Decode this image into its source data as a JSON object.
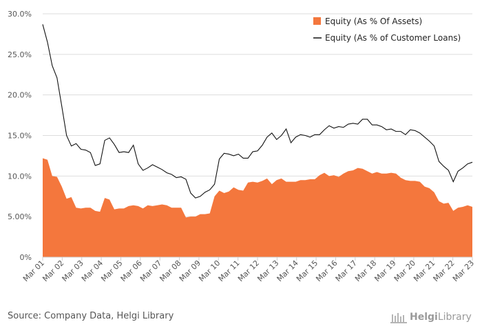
{
  "source": "Source: Company Data, Helgi Library",
  "logo": {
    "part1": "Helgi",
    "part2": "Library"
  },
  "colors": {
    "assets_fill": "#f4773d",
    "loans_line": "#111111",
    "grid": "#dddddd",
    "axis": "#cfcfcf",
    "text": "#555555"
  },
  "chart_data": {
    "type": "area",
    "y_ticks": [
      "0%",
      "5.00%",
      "10.0%",
      "15.0%",
      "20.0%",
      "25.0%",
      "30.0%"
    ],
    "ylim": [
      0,
      30
    ],
    "x_ticks": [
      "Mar 01",
      "Mar 02",
      "Mar 03",
      "Mar 04",
      "Mar 05",
      "Mar 06",
      "Mar 07",
      "Mar 08",
      "Mar 09",
      "Mar 10",
      "Mar 11",
      "Mar 12",
      "Mar 13",
      "Mar 14",
      "Mar 15",
      "Mar 16",
      "Mar 17",
      "Mar 18",
      "Mar 19",
      "Mar 20",
      "Mar 21",
      "Mar 22",
      "Mar 23"
    ],
    "x_range": [
      0,
      90
    ],
    "legend_position": "top-right",
    "series": [
      {
        "name": "Equity (As % Of Assets)",
        "type": "area",
        "x": [
          0,
          1,
          2,
          3,
          4,
          5,
          6,
          7,
          8,
          9,
          10,
          11,
          12,
          13,
          14,
          15,
          16,
          17,
          18,
          19,
          20,
          21,
          22,
          23,
          24,
          25,
          26,
          27,
          28,
          29,
          30,
          31,
          32,
          33,
          34,
          35,
          36,
          37,
          38,
          39,
          40,
          41,
          42,
          43,
          44,
          45,
          46,
          47,
          48,
          49,
          50,
          51,
          52,
          53,
          54,
          55,
          56,
          57,
          58,
          59,
          60,
          61,
          62,
          63,
          64,
          65,
          66,
          67,
          68,
          69,
          70,
          71,
          72,
          73,
          74,
          75,
          76,
          77,
          78,
          79,
          80,
          81,
          82,
          83,
          84,
          85,
          86,
          87,
          88,
          89,
          90
        ],
        "values": [
          12.2,
          12.0,
          10.0,
          9.9,
          8.7,
          7.2,
          7.4,
          6.1,
          6.0,
          6.1,
          6.1,
          5.7,
          5.6,
          7.3,
          7.1,
          5.9,
          6.0,
          6.0,
          6.3,
          6.4,
          6.3,
          6.0,
          6.4,
          6.3,
          6.4,
          6.5,
          6.4,
          6.1,
          6.1,
          6.1,
          4.9,
          5.0,
          5.0,
          5.3,
          5.3,
          5.4,
          7.5,
          8.2,
          7.9,
          8.1,
          8.6,
          8.3,
          8.2,
          9.2,
          9.3,
          9.2,
          9.4,
          9.7,
          9.0,
          9.5,
          9.7,
          9.3,
          9.3,
          9.3,
          9.5,
          9.5,
          9.6,
          9.6,
          10.1,
          10.4,
          10.0,
          10.1,
          9.9,
          10.3,
          10.6,
          10.7,
          11.0,
          10.9,
          10.6,
          10.3,
          10.5,
          10.3,
          10.3,
          10.4,
          10.3,
          9.8,
          9.5,
          9.4,
          9.4,
          9.3,
          8.7,
          8.5,
          8.0,
          6.9,
          6.6,
          6.7,
          5.7,
          6.1,
          6.2,
          6.4,
          6.2
        ]
      },
      {
        "name": "Equity (As % of Customer Loans)",
        "type": "line",
        "x": [
          0,
          1,
          2,
          3,
          4,
          5,
          6,
          7,
          8,
          9,
          10,
          11,
          12,
          13,
          14,
          15,
          16,
          17,
          18,
          19,
          20,
          21,
          22,
          23,
          24,
          25,
          26,
          27,
          28,
          29,
          30,
          31,
          32,
          33,
          34,
          35,
          36,
          37,
          38,
          39,
          40,
          41,
          42,
          43,
          44,
          45,
          46,
          47,
          48,
          49,
          50,
          51,
          52,
          53,
          54,
          55,
          56,
          57,
          58,
          59,
          60,
          61,
          62,
          63,
          64,
          65,
          66,
          67,
          68,
          69,
          70,
          71,
          72,
          73,
          74,
          75,
          76,
          77,
          78,
          79,
          80,
          81,
          82,
          83,
          84,
          85,
          86,
          87,
          88,
          89,
          90
        ],
        "values": [
          28.7,
          26.5,
          23.6,
          22.1,
          18.6,
          15.0,
          13.7,
          14.0,
          13.3,
          13.2,
          12.9,
          11.3,
          11.5,
          14.4,
          14.7,
          13.9,
          12.9,
          13.0,
          12.9,
          13.8,
          11.5,
          10.7,
          11.0,
          11.4,
          11.1,
          10.8,
          10.4,
          10.2,
          9.8,
          9.9,
          9.6,
          7.9,
          7.3,
          7.5,
          8.0,
          8.3,
          9.0,
          12.1,
          12.8,
          12.7,
          12.5,
          12.7,
          12.2,
          12.2,
          13.0,
          13.1,
          13.8,
          14.8,
          15.3,
          14.5,
          15.0,
          15.8,
          14.1,
          14.8,
          15.1,
          15.0,
          14.8,
          15.1,
          15.1,
          15.7,
          16.2,
          15.9,
          16.1,
          16.0,
          16.4,
          16.5,
          16.4,
          17.0,
          17.0,
          16.3,
          16.3,
          16.1,
          15.7,
          15.8,
          15.5,
          15.5,
          15.1,
          15.7,
          15.6,
          15.3,
          14.8,
          14.3,
          13.7,
          11.8,
          11.2,
          10.7,
          9.3,
          10.6,
          11.0,
          11.5,
          11.7
        ]
      }
    ]
  }
}
